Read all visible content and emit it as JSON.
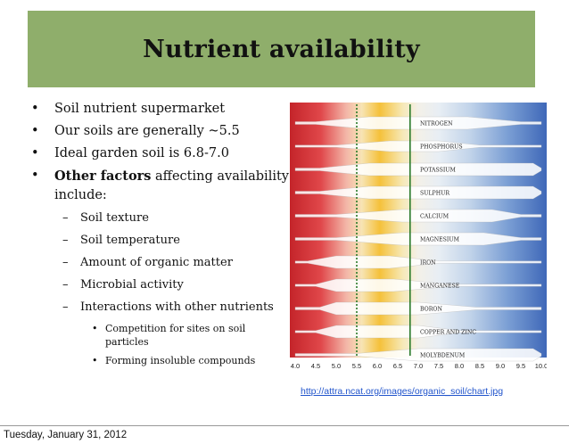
{
  "slide": {
    "title": "Nutrient availability",
    "bullets": [
      {
        "text": "Soil nutrient supermarket"
      },
      {
        "text": "Our soils are generally ~5.5"
      },
      {
        "text": "Ideal garden soil is 6.8-7.0"
      }
    ],
    "bullet4": {
      "bold": "Other factors",
      "rest": " affecting availability include:"
    },
    "subbullets": [
      {
        "text": "Soil texture"
      },
      {
        "text": "Soil temperature"
      },
      {
        "text": "Amount of organic matter"
      },
      {
        "text": "Microbial activity"
      },
      {
        "text": "Interactions with other nutrients"
      }
    ],
    "subsubbullets": [
      {
        "text": "Competition for sites on soil particles"
      },
      {
        "text": "Forming insoluble compounds"
      }
    ],
    "bullet_glyph": "•",
    "dash_glyph": "–",
    "link": "http://attra.ncat.org/images/organic_soil/chart.jpg"
  },
  "chart": {
    "nutrients": [
      "NITROGEN",
      "PHOSPHORUS",
      "POTASSIUM",
      "SULPHUR",
      "CALCIUM",
      "MAGNESIUM",
      "IRON",
      "MANGANESE",
      "BORON",
      "COPPER AND ZINC",
      "MOLYBDENUM"
    ],
    "ticks": [
      "4.0",
      "4.5",
      "5.0",
      "5.5",
      "6.0",
      "6.5",
      "7.0",
      "7.5",
      "8.0",
      "8.5",
      "9.0",
      "9.5",
      "10.0"
    ],
    "ph_min": 4.0,
    "ph_max": 10.0,
    "marker_dotted_ph": 5.5,
    "marker_solid_ph": 6.8
  },
  "footer": {
    "date": "Tuesday, January 31, 2012"
  },
  "colors": {
    "title_bar": "#8fae6b",
    "link": "#2255cc",
    "marker": "#2a7a2a"
  }
}
